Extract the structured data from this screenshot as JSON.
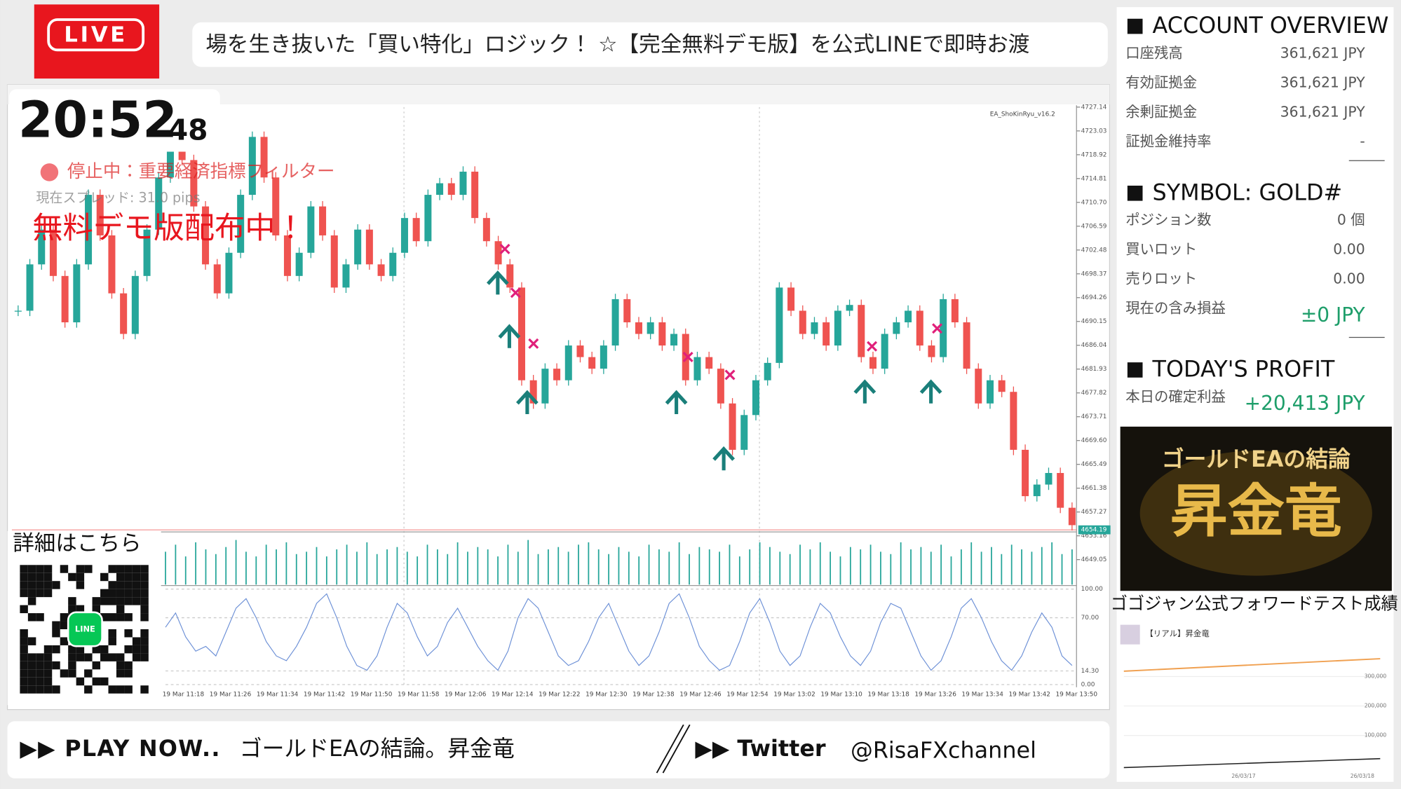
{
  "live_badge": "LIVE",
  "ticker": "場を生き抜いた「買い特化」ロジック！ ☆【完全無料デモ版】を公式LINEで即時お渡",
  "clock": {
    "hm": "20:52",
    "s": "48"
  },
  "overlay": {
    "status": "停止中：重要経済指標フィルター",
    "spread": "現在スプレッド: 31.0 pips",
    "promo": "無料デモ版配布中！"
  },
  "price_chart": {
    "ea_label": "EA_ShoKinRyu_v16.2",
    "closes": [
      4692,
      4700,
      4706,
      4698,
      4690,
      4700,
      4712,
      4705,
      4695,
      4688,
      4698,
      4706,
      4715,
      4720,
      4718,
      4710,
      4700,
      4695,
      4702,
      4712,
      4722,
      4715,
      4705,
      4698,
      4702,
      4710,
      4705,
      4696,
      4700,
      4706,
      4700,
      4698,
      4702,
      4708,
      4704,
      4712,
      4714,
      4712,
      4716,
      4708,
      4704,
      4700,
      4696,
      4680,
      4676,
      4682,
      4680,
      4686,
      4684,
      4682,
      4686,
      4694,
      4690,
      4688,
      4690,
      4686,
      4688,
      4680,
      4684,
      4682,
      4676,
      4668,
      4674,
      4680,
      4683,
      4696,
      4692,
      4688,
      4690,
      4686,
      4692,
      4693,
      4684,
      4682,
      4688,
      4690,
      4692,
      4686,
      4684,
      4694,
      4690,
      4682,
      4676,
      4680,
      4678,
      4668,
      4660,
      4662,
      4664,
      4658,
      4655
    ],
    "volumes": [
      70,
      85,
      60,
      90,
      75,
      65,
      80,
      95,
      70,
      60,
      85,
      75,
      90,
      65,
      70,
      80,
      60,
      75,
      85,
      70,
      90,
      65,
      75,
      80,
      70,
      60,
      85,
      75,
      65,
      90,
      70,
      80,
      75,
      60,
      85,
      70,
      95,
      65,
      75,
      80,
      70,
      85,
      90,
      75,
      65,
      80,
      70,
      60,
      85,
      75,
      70,
      90,
      65,
      80,
      75,
      70,
      85,
      60,
      75,
      90,
      80,
      70,
      65,
      85,
      75,
      90,
      70,
      60,
      80,
      75,
      85,
      70,
      65,
      90,
      75,
      80,
      70,
      85,
      60,
      75,
      90,
      70,
      80,
      65,
      85,
      75,
      70,
      80,
      90,
      65,
      75
    ],
    "oscillator": [
      60,
      75,
      50,
      35,
      40,
      30,
      55,
      80,
      90,
      70,
      45,
      30,
      25,
      40,
      60,
      85,
      95,
      70,
      40,
      20,
      15,
      30,
      60,
      85,
      75,
      50,
      30,
      40,
      65,
      80,
      60,
      40,
      25,
      15,
      35,
      70,
      90,
      80,
      55,
      30,
      20,
      25,
      45,
      70,
      85,
      60,
      35,
      20,
      30,
      55,
      85,
      95,
      70,
      40,
      25,
      15,
      20,
      45,
      75,
      90,
      65,
      35,
      20,
      30,
      60,
      85,
      75,
      50,
      30,
      20,
      35,
      65,
      85,
      80,
      55,
      30,
      15,
      25,
      50,
      80,
      90,
      70,
      45,
      25,
      15,
      30,
      55,
      75,
      60,
      30,
      20
    ],
    "price_ticks": [
      4727.14,
      4723.03,
      4718.92,
      4714.81,
      {
        "value": 4710.7,
        "label": "4710.70"
      },
      4706.59,
      4702.48,
      4698.37,
      4694.26,
      4690.15,
      4686.04,
      4681.93,
      4677.82,
      4673.71,
      {
        "value": 4669.6,
        "label": "4669.60"
      },
      4665.49,
      4661.38,
      4657.27,
      4653.16,
      4649.05
    ],
    "oscillator_ticks": [
      {
        "value": 100,
        "label": "100.00"
      },
      {
        "value": 70,
        "label": "70.00"
      },
      {
        "value": 14.3,
        "label": "14.30"
      },
      {
        "value": 0,
        "label": "0.00"
      }
    ],
    "current_price": 4654.19,
    "time_labels": [
      "19 Mar 11:18",
      "19 Mar 11:26",
      "19 Mar 11:34",
      "19 Mar 11:42",
      "19 Mar 11:50",
      "19 Mar 11:58",
      "19 Mar 12:06",
      "19 Mar 12:14",
      "19 Mar 12:22",
      "19 Mar 12:30",
      "19 Mar 12:38",
      "19 Mar 12:46",
      "19 Mar 12:54",
      "19 Mar 13:02",
      "19 Mar 13:10",
      "19 Mar 13:18",
      "19 Mar 13:26",
      "19 Mar 13:34",
      "19 Mar 13:42",
      "19 Mar 13:50"
    ]
  },
  "qr": {
    "caption": "詳細はこちら",
    "badge": "LINE"
  },
  "account": {
    "title": "ACCOUNT OVERVIEW",
    "rows": [
      [
        "口座残高",
        "361,621 JPY"
      ],
      [
        "有効証拠金",
        "361,621 JPY"
      ],
      [
        "余剰証拠金",
        "361,621 JPY"
      ],
      [
        "証拠金維持率",
        "-"
      ]
    ]
  },
  "symbol": {
    "title": "SYMBOL: GOLD#",
    "rows": [
      [
        "ポジション数",
        "0 個"
      ],
      [
        "買いロット",
        "0.00"
      ],
      [
        "売りロット",
        "0.00"
      ],
      [
        "現在の含み損益",
        "±0 JPY"
      ]
    ]
  },
  "profit": {
    "title": "TODAY'S PROFIT",
    "rows": [
      [
        "本日の確定利益",
        "+20,413 JPY"
      ]
    ]
  },
  "promo_banner": {
    "line1": "ゴールドEAの結論",
    "line2": "昇金竜"
  },
  "forward_test": {
    "caption": "ゴゴジャン公式フォワードテスト成績",
    "label": "【リアル】昇金竜",
    "ticks": [
      "300,000",
      "200,000",
      "100,000"
    ],
    "dates": [
      "26/03/17",
      "26/03/18"
    ]
  },
  "footer": {
    "play": "▶▶ PLAY NOW..",
    "song": "ゴールドEAの結論。昇金竜",
    "twitter": "▶▶ Twitter",
    "handle": "@RisaFXchannel"
  }
}
